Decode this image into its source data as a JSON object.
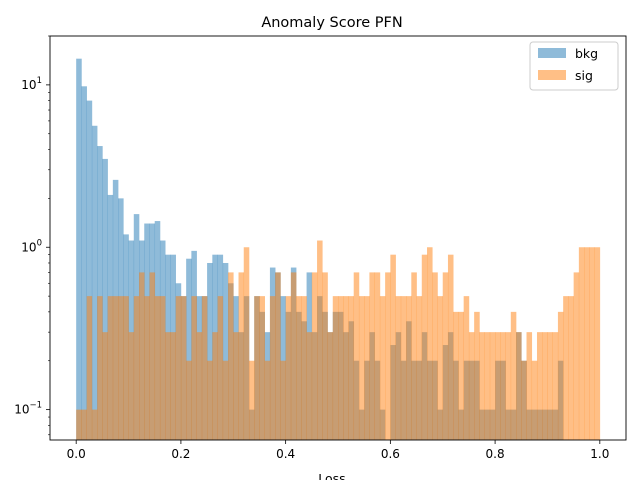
{
  "chart_data": {
    "type": "bar",
    "title": "Anomaly Score PFN",
    "xlabel": "Loss",
    "ylabel": "",
    "xlim": [
      -0.05,
      1.05
    ],
    "ylim": [
      0.065,
      20
    ],
    "yscale": "log",
    "grid": false,
    "legend_position": "top-right",
    "bin_edges_start": 0.0,
    "bin_width": 0.01,
    "x_ticks": [
      {
        "v": 0.0,
        "label": "0.0"
      },
      {
        "v": 0.2,
        "label": "0.2"
      },
      {
        "v": 0.4,
        "label": "0.4"
      },
      {
        "v": 0.6,
        "label": "0.6"
      },
      {
        "v": 0.8,
        "label": "0.8"
      },
      {
        "v": 1.0,
        "label": "1.0"
      }
    ],
    "y_major_ticks": [
      {
        "v": 0.1,
        "base": "10",
        "exp": "−1"
      },
      {
        "v": 1,
        "base": "10",
        "exp": "0"
      },
      {
        "v": 10,
        "base": "10",
        "exp": "1"
      }
    ],
    "series": [
      {
        "name": "bkg",
        "color": "#1f77b4",
        "values": [
          14.5,
          9.8,
          8.0,
          5.6,
          4.2,
          3.5,
          2.1,
          2.6,
          2.0,
          1.2,
          1.1,
          1.6,
          1.1,
          1.4,
          1.4,
          1.45,
          1.1,
          0.9,
          0.9,
          0.6,
          0.5,
          0.85,
          0.95,
          0.5,
          0.5,
          0.8,
          0.9,
          0.9,
          0.8,
          0.6,
          0.5,
          0.3,
          0.5,
          0.1,
          0.5,
          0.4,
          0.3,
          0.75,
          0.7,
          0.5,
          0.4,
          0.75,
          0.4,
          0.35,
          0.7,
          0.3,
          0.5,
          0.4,
          0.3,
          0.4,
          0.4,
          0.3,
          0.35,
          0.2,
          0.1,
          0.2,
          0.3,
          0.2,
          0.1,
          0.0,
          0.25,
          0.3,
          0.2,
          0.35,
          0.2,
          0.2,
          0.3,
          0.2,
          0.2,
          0.1,
          0.25,
          0.3,
          0.2,
          0.1,
          0.2,
          0.2,
          0.2,
          0.1,
          0.1,
          0.1,
          0.2,
          0.2,
          0.1,
          0.1,
          0.3,
          0.2,
          0.1,
          0.1,
          0.1,
          0.1,
          0.1,
          0.1,
          0.2,
          0.0,
          0.0,
          0.0,
          0.0,
          0.0,
          0.0,
          0.0
        ]
      },
      {
        "name": "sig",
        "color": "#ff7f0e",
        "values": [
          0.1,
          0.1,
          0.5,
          0.1,
          0.5,
          0.3,
          0.5,
          0.5,
          0.5,
          0.5,
          0.3,
          0.5,
          0.7,
          0.5,
          0.7,
          0.5,
          0.5,
          0.3,
          0.3,
          0.5,
          0.5,
          0.2,
          0.5,
          0.3,
          0.5,
          0.2,
          0.3,
          0.5,
          0.2,
          0.7,
          0.3,
          0.7,
          1.0,
          0.2,
          0.5,
          0.5,
          0.2,
          0.5,
          0.7,
          0.2,
          0.5,
          0.7,
          0.5,
          0.5,
          0.3,
          0.7,
          1.1,
          0.7,
          0.3,
          0.5,
          0.5,
          0.5,
          0.5,
          0.7,
          0.5,
          0.5,
          0.7,
          0.7,
          0.5,
          0.7,
          0.9,
          0.5,
          0.5,
          0.5,
          0.7,
          0.5,
          0.9,
          1.0,
          0.7,
          0.5,
          0.7,
          0.9,
          0.4,
          0.4,
          0.5,
          0.3,
          0.4,
          0.3,
          0.3,
          0.3,
          0.3,
          0.3,
          0.3,
          0.4,
          0.3,
          0.2,
          0.3,
          0.2,
          0.3,
          0.3,
          0.3,
          0.3,
          0.4,
          0.5,
          0.5,
          0.7,
          1.0,
          1.0,
          1.0,
          1.0
        ]
      }
    ]
  }
}
